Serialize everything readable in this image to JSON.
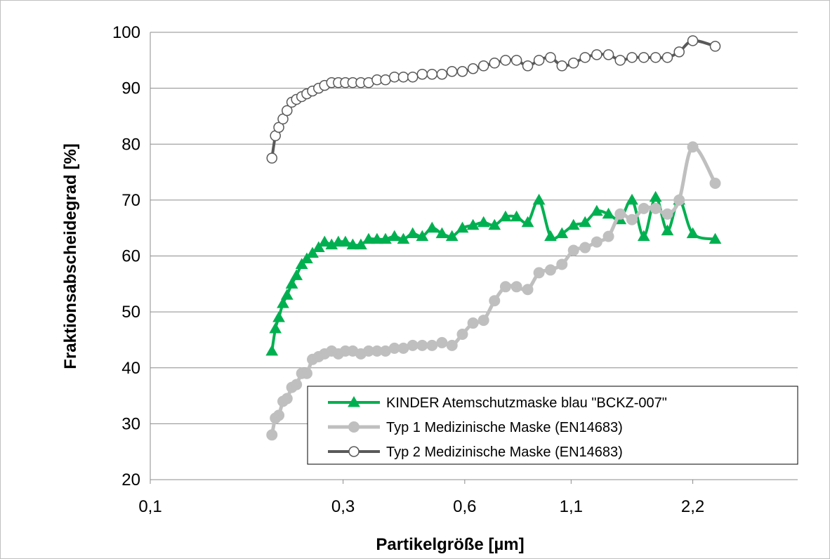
{
  "chart_data": {
    "type": "line",
    "title": "",
    "xlabel": "Partikelgröße [µm]",
    "ylabel": "Fraktionsabscheidegrad [%]",
    "x_scale": "log",
    "x_ticks": [
      0.1,
      0.3,
      0.6,
      1.1,
      2.2
    ],
    "x_tick_labels": [
      "0,1",
      "0,3",
      "0,6",
      "1,1",
      "2,2"
    ],
    "xlim": [
      0.1,
      4.0
    ],
    "y_ticks": [
      20,
      30,
      40,
      50,
      60,
      70,
      80,
      90,
      100
    ],
    "ylim": [
      20,
      100
    ],
    "grid": "horizontal",
    "legend_position": "bottom-right",
    "x": [
      0.2,
      0.204,
      0.208,
      0.213,
      0.218,
      0.224,
      0.23,
      0.237,
      0.244,
      0.252,
      0.261,
      0.27,
      0.281,
      0.292,
      0.304,
      0.317,
      0.332,
      0.347,
      0.364,
      0.382,
      0.402,
      0.423,
      0.446,
      0.471,
      0.498,
      0.527,
      0.558,
      0.592,
      0.629,
      0.668,
      0.711,
      0.757,
      0.806,
      0.859,
      0.916,
      0.978,
      1.044,
      1.115,
      1.191,
      1.273,
      1.361,
      1.455,
      1.556,
      1.664,
      1.78,
      1.904,
      2.036
    ],
    "series": [
      {
        "name": "KINDER Atemschutzmaske blau \"BCKZ-007\"",
        "color": "#00b050",
        "marker": "filled-triangle",
        "values": [
          43,
          47,
          49,
          51.5,
          53,
          55,
          56.5,
          58.5,
          59.5,
          60.5,
          61.5,
          62.5,
          62,
          62.5,
          62.5,
          62,
          62,
          63,
          63,
          63,
          63.5,
          63,
          64,
          63.5,
          65,
          64,
          63.5,
          65,
          65.5,
          66,
          65.5,
          67,
          67,
          66,
          70,
          63.5,
          64,
          65.5,
          66,
          68,
          67.5,
          66.5,
          70,
          63.5,
          70.5,
          64.5,
          70
        ]
      },
      {
        "name": "Typ 1 Medizinische Maske (EN14683)",
        "color": "#bfbfbf",
        "marker": "filled-circle",
        "values": [
          28,
          31,
          31.5,
          34,
          34.5,
          36.5,
          37,
          39,
          39,
          41.5,
          42,
          42.5,
          43,
          42.5,
          43,
          43,
          42.5,
          43,
          43,
          43,
          43.5,
          43.5,
          44,
          44,
          44,
          44.5,
          44,
          46,
          48,
          48.5,
          52,
          54.5,
          54.5,
          54,
          57,
          57.5,
          58.5,
          61,
          61.5,
          62.5,
          63.5,
          67.5,
          66.5,
          68.5,
          68.5,
          67.5,
          70
        ]
      },
      {
        "name": "Typ 2 Medizinische Maske (EN14683)",
        "color": "#595959",
        "marker": "hollow-circle",
        "values": [
          77.5,
          81.5,
          83,
          84.5,
          86,
          87.5,
          88,
          88.5,
          89,
          89.5,
          90,
          90.5,
          91,
          91,
          91,
          91,
          91,
          91,
          91.5,
          91.5,
          92,
          92,
          92,
          92.5,
          92.5,
          92.5,
          93,
          93,
          93.5,
          94,
          94.5,
          95,
          95,
          94,
          95,
          95.5,
          94,
          94.5,
          95.5,
          96,
          96,
          95,
          95.5,
          95.5,
          95.5,
          95.5,
          96.5
        ]
      }
    ],
    "extra_points": [
      {
        "series": 1,
        "x": [
          2.2,
          2.5
        ],
        "values": [
          79.5,
          73
        ]
      },
      {
        "series": 2,
        "x": [
          2.2,
          2.5
        ],
        "values": [
          98.5,
          97.5
        ]
      },
      {
        "series": 0,
        "x": [
          2.2,
          2.5
        ],
        "values": [
          64,
          63
        ]
      }
    ]
  }
}
